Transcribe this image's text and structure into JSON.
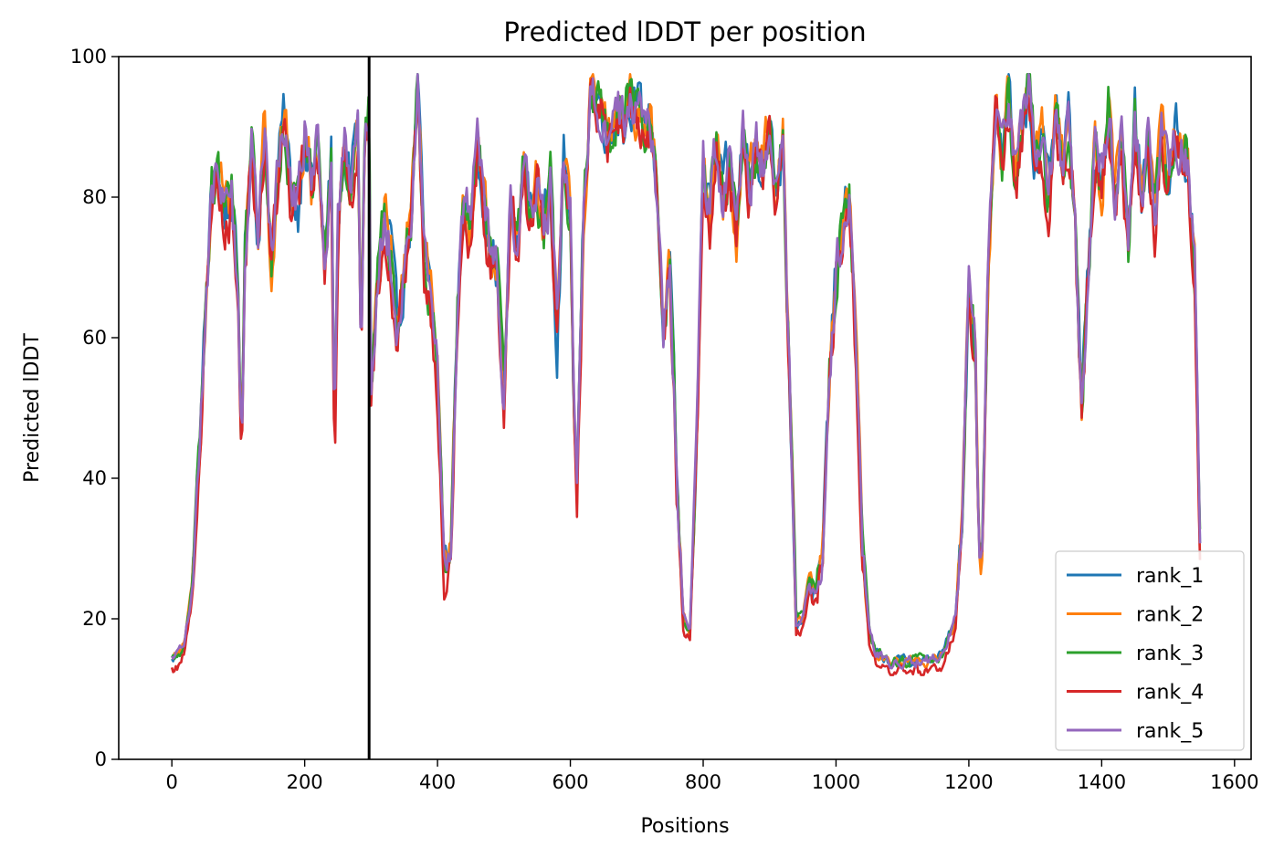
{
  "chart_data": {
    "type": "line",
    "title": "Predicted lDDT per position",
    "xlabel": "Positions",
    "ylabel": "Predicted lDDT",
    "xlim": [
      -80,
      1625
    ],
    "ylim": [
      0,
      100
    ],
    "xticks": [
      0,
      200,
      400,
      600,
      800,
      1000,
      1200,
      1400,
      1600
    ],
    "yticks": [
      0,
      20,
      40,
      60,
      80,
      100
    ],
    "grid": false,
    "legend_placement": "lower-right",
    "vline_x": 297,
    "series": [
      {
        "name": "rank_1",
        "color": "#1f77b4"
      },
      {
        "name": "rank_2",
        "color": "#ff7f0e"
      },
      {
        "name": "rank_3",
        "color": "#2ca02c"
      },
      {
        "name": "rank_4",
        "color": "#d62728"
      },
      {
        "name": "rank_5",
        "color": "#9467bd"
      }
    ],
    "base_profile": {
      "x": [
        0,
        10,
        20,
        30,
        40,
        50,
        60,
        70,
        80,
        90,
        100,
        105,
        110,
        120,
        130,
        140,
        150,
        160,
        170,
        180,
        190,
        200,
        210,
        220,
        230,
        240,
        245,
        250,
        260,
        270,
        280,
        285,
        290,
        297,
        300,
        310,
        320,
        330,
        340,
        350,
        360,
        370,
        380,
        390,
        400,
        410,
        420,
        430,
        440,
        450,
        460,
        470,
        480,
        490,
        500,
        510,
        520,
        530,
        540,
        550,
        560,
        570,
        580,
        590,
        600,
        605,
        610,
        620,
        630,
        640,
        650,
        660,
        670,
        680,
        690,
        700,
        710,
        720,
        730,
        740,
        750,
        760,
        765,
        770,
        780,
        790,
        800,
        810,
        820,
        830,
        840,
        850,
        860,
        870,
        880,
        890,
        900,
        910,
        920,
        930,
        940,
        950,
        960,
        970,
        980,
        990,
        1000,
        1010,
        1020,
        1030,
        1040,
        1050,
        1060,
        1080,
        1100,
        1120,
        1140,
        1160,
        1180,
        1190,
        1200,
        1210,
        1215,
        1220,
        1230,
        1240,
        1250,
        1260,
        1270,
        1280,
        1290,
        1300,
        1310,
        1320,
        1330,
        1340,
        1350,
        1360,
        1365,
        1370,
        1380,
        1390,
        1400,
        1410,
        1420,
        1430,
        1440,
        1450,
        1460,
        1470,
        1480,
        1490,
        1500,
        1510,
        1520,
        1530,
        1540,
        1548
      ],
      "y": [
        14,
        15,
        17,
        24,
        42,
        62,
        81,
        83,
        78,
        80,
        66,
        45,
        72,
        88,
        75,
        90,
        70,
        85,
        92,
        80,
        78,
        90,
        82,
        88,
        70,
        86,
        45,
        75,
        88,
        83,
        90,
        58,
        88,
        93,
        52,
        68,
        78,
        72,
        60,
        70,
        78,
        96,
        72,
        65,
        55,
        28,
        30,
        65,
        80,
        75,
        88,
        80,
        72,
        70,
        50,
        80,
        72,
        85,
        78,
        82,
        75,
        82,
        60,
        85,
        78,
        50,
        38,
        78,
        95,
        94,
        92,
        89,
        93,
        90,
        95,
        93,
        90,
        92,
        82,
        60,
        70,
        40,
        30,
        20,
        18,
        45,
        85,
        78,
        88,
        80,
        85,
        75,
        90,
        82,
        88,
        85,
        90,
        80,
        88,
        55,
        20,
        20,
        26,
        24,
        30,
        55,
        70,
        75,
        80,
        60,
        30,
        18,
        15,
        14,
        14,
        14,
        14,
        15,
        20,
        35,
        68,
        58,
        30,
        28,
        75,
        92,
        85,
        95,
        82,
        90,
        96,
        85,
        88,
        80,
        92,
        84,
        90,
        78,
        62,
        50,
        72,
        88,
        82,
        93,
        80,
        88,
        72,
        92,
        80,
        88,
        76,
        90,
        82,
        90,
        88,
        85,
        70,
        30
      ]
    }
  }
}
